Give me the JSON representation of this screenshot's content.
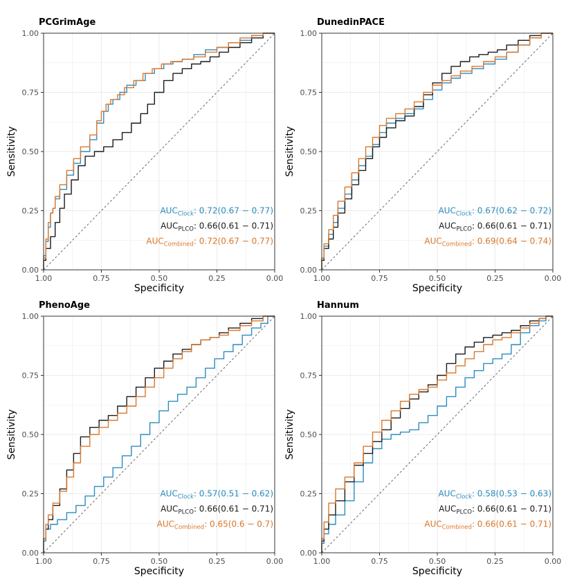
{
  "figure": {
    "axis_labels": {
      "x": "Specificity",
      "y": "Sensitivity"
    },
    "auc_text": {
      "prefix": "AUC",
      "clock_sub": "Clock",
      "plco_sub": "PLCO",
      "combined_sub": "Combined",
      "separator": ":"
    }
  },
  "colors": {
    "clock": "#2b8cbe",
    "plco": "#1a1a1a",
    "combined": "#d9772b",
    "grid": "#ebebeb",
    "frame": "#333333",
    "diagonal": "#666666"
  },
  "chart_data": [
    {
      "type": "line",
      "title": "PCGrimAge",
      "xlabel": "Specificity",
      "ylabel": "Sensitivity",
      "xlim": [
        1.0,
        0.0
      ],
      "ylim": [
        0.0,
        1.0
      ],
      "x_ticks": [
        "1.00",
        "0.75",
        "0.50",
        "0.25",
        "0.00"
      ],
      "y_ticks": [
        "0.00",
        "0.25",
        "0.50",
        "0.75",
        "1.00"
      ],
      "grid": true,
      "diagonal": true,
      "auc": {
        "clock": "0.72(0.67 − 0.77)",
        "plco": "0.66(0.61 − 0.71)",
        "combined": "0.72(0.67 − 0.77)"
      },
      "series": [
        {
          "name": "Clock",
          "x": [
            1.0,
            0.99,
            0.98,
            0.97,
            0.96,
            0.95,
            0.93,
            0.9,
            0.87,
            0.84,
            0.8,
            0.77,
            0.74,
            0.72,
            0.7,
            0.67,
            0.64,
            0.6,
            0.56,
            0.52,
            0.48,
            0.44,
            0.4,
            0.35,
            0.3,
            0.25,
            0.2,
            0.15,
            0.1,
            0.05,
            0.0
          ],
          "y": [
            0.0,
            0.06,
            0.12,
            0.18,
            0.24,
            0.26,
            0.3,
            0.34,
            0.4,
            0.45,
            0.5,
            0.55,
            0.62,
            0.67,
            0.7,
            0.72,
            0.75,
            0.78,
            0.8,
            0.83,
            0.85,
            0.87,
            0.88,
            0.89,
            0.91,
            0.93,
            0.94,
            0.96,
            0.97,
            0.99,
            1.0
          ]
        },
        {
          "name": "PLCO",
          "x": [
            1.0,
            0.99,
            0.97,
            0.95,
            0.93,
            0.91,
            0.88,
            0.85,
            0.82,
            0.78,
            0.74,
            0.7,
            0.66,
            0.62,
            0.58,
            0.55,
            0.52,
            0.48,
            0.44,
            0.4,
            0.36,
            0.32,
            0.28,
            0.24,
            0.2,
            0.15,
            0.1,
            0.05,
            0.0
          ],
          "y": [
            0.0,
            0.04,
            0.09,
            0.14,
            0.2,
            0.26,
            0.32,
            0.38,
            0.44,
            0.48,
            0.5,
            0.52,
            0.55,
            0.58,
            0.62,
            0.66,
            0.7,
            0.75,
            0.8,
            0.83,
            0.85,
            0.87,
            0.88,
            0.9,
            0.92,
            0.94,
            0.96,
            0.98,
            1.0
          ]
        },
        {
          "name": "Combined",
          "x": [
            1.0,
            0.99,
            0.98,
            0.97,
            0.96,
            0.95,
            0.93,
            0.9,
            0.87,
            0.84,
            0.8,
            0.77,
            0.75,
            0.73,
            0.71,
            0.68,
            0.65,
            0.61,
            0.57,
            0.53,
            0.49,
            0.45,
            0.4,
            0.35,
            0.3,
            0.25,
            0.2,
            0.15,
            0.1,
            0.05,
            0.0
          ],
          "y": [
            0.0,
            0.05,
            0.13,
            0.2,
            0.24,
            0.26,
            0.31,
            0.36,
            0.42,
            0.47,
            0.52,
            0.57,
            0.63,
            0.67,
            0.7,
            0.72,
            0.74,
            0.77,
            0.8,
            0.83,
            0.85,
            0.87,
            0.88,
            0.89,
            0.9,
            0.92,
            0.94,
            0.96,
            0.98,
            0.99,
            1.0
          ]
        }
      ]
    },
    {
      "type": "line",
      "title": "DunedinPACE",
      "xlabel": "Specificity",
      "ylabel": "Sensitivity",
      "xlim": [
        1.0,
        0.0
      ],
      "ylim": [
        0.0,
        1.0
      ],
      "x_ticks": [
        "1.00",
        "0.75",
        "0.50",
        "0.25",
        "0.00"
      ],
      "y_ticks": [
        "0.00",
        "0.25",
        "0.50",
        "0.75",
        "1.00"
      ],
      "grid": true,
      "diagonal": true,
      "auc": {
        "clock": "0.67(0.62 − 0.72)",
        "plco": "0.66(0.61 − 0.71)",
        "combined": "0.69(0.64 − 0.74)"
      },
      "series": [
        {
          "name": "Clock",
          "x": [
            1.0,
            0.99,
            0.97,
            0.95,
            0.93,
            0.9,
            0.87,
            0.84,
            0.81,
            0.78,
            0.75,
            0.72,
            0.68,
            0.64,
            0.6,
            0.56,
            0.52,
            0.48,
            0.44,
            0.4,
            0.35,
            0.3,
            0.25,
            0.2,
            0.15,
            0.1,
            0.05,
            0.0
          ],
          "y": [
            0.0,
            0.05,
            0.1,
            0.15,
            0.2,
            0.26,
            0.32,
            0.38,
            0.44,
            0.48,
            0.53,
            0.58,
            0.62,
            0.64,
            0.66,
            0.68,
            0.72,
            0.76,
            0.79,
            0.81,
            0.83,
            0.85,
            0.87,
            0.89,
            0.92,
            0.95,
            0.98,
            1.0
          ]
        },
        {
          "name": "PLCO",
          "x": [
            1.0,
            0.99,
            0.97,
            0.95,
            0.93,
            0.9,
            0.87,
            0.84,
            0.81,
            0.78,
            0.75,
            0.72,
            0.68,
            0.64,
            0.6,
            0.56,
            0.52,
            0.48,
            0.44,
            0.4,
            0.36,
            0.32,
            0.28,
            0.24,
            0.2,
            0.15,
            0.1,
            0.05,
            0.0
          ],
          "y": [
            0.0,
            0.04,
            0.09,
            0.13,
            0.18,
            0.24,
            0.3,
            0.36,
            0.42,
            0.47,
            0.52,
            0.56,
            0.6,
            0.63,
            0.65,
            0.69,
            0.74,
            0.79,
            0.83,
            0.86,
            0.88,
            0.9,
            0.91,
            0.92,
            0.93,
            0.95,
            0.97,
            0.99,
            1.0
          ]
        },
        {
          "name": "Combined",
          "x": [
            1.0,
            0.99,
            0.97,
            0.95,
            0.93,
            0.9,
            0.87,
            0.84,
            0.81,
            0.78,
            0.75,
            0.72,
            0.68,
            0.64,
            0.6,
            0.56,
            0.52,
            0.48,
            0.44,
            0.4,
            0.35,
            0.3,
            0.25,
            0.2,
            0.15,
            0.1,
            0.05,
            0.0
          ],
          "y": [
            0.0,
            0.05,
            0.11,
            0.17,
            0.23,
            0.29,
            0.35,
            0.41,
            0.47,
            0.52,
            0.56,
            0.61,
            0.64,
            0.66,
            0.68,
            0.71,
            0.75,
            0.78,
            0.8,
            0.82,
            0.84,
            0.86,
            0.88,
            0.9,
            0.92,
            0.95,
            0.98,
            1.0
          ]
        }
      ]
    },
    {
      "type": "line",
      "title": "PhenoAge",
      "xlabel": "Specificity",
      "ylabel": "Sensitivity",
      "xlim": [
        1.0,
        0.0
      ],
      "ylim": [
        0.0,
        1.0
      ],
      "x_ticks": [
        "1.00",
        "0.75",
        "0.50",
        "0.25",
        "0.00"
      ],
      "y_ticks": [
        "0.00",
        "0.25",
        "0.50",
        "0.75",
        "1.00"
      ],
      "grid": true,
      "diagonal": true,
      "auc": {
        "clock": "0.57(0.51 − 0.62)",
        "plco": "0.66(0.61 − 0.71)",
        "combined": "0.65(0.6 − 0.7)"
      },
      "series": [
        {
          "name": "Clock",
          "x": [
            1.0,
            0.99,
            0.97,
            0.94,
            0.9,
            0.86,
            0.82,
            0.78,
            0.74,
            0.7,
            0.66,
            0.62,
            0.58,
            0.54,
            0.5,
            0.46,
            0.42,
            0.38,
            0.34,
            0.3,
            0.26,
            0.22,
            0.18,
            0.14,
            0.1,
            0.06,
            0.03,
            0.0
          ],
          "y": [
            0.0,
            0.05,
            0.1,
            0.12,
            0.14,
            0.17,
            0.2,
            0.24,
            0.28,
            0.32,
            0.36,
            0.41,
            0.45,
            0.5,
            0.55,
            0.6,
            0.64,
            0.67,
            0.7,
            0.74,
            0.78,
            0.82,
            0.85,
            0.88,
            0.92,
            0.95,
            0.97,
            1.0
          ]
        },
        {
          "name": "PLCO",
          "x": [
            1.0,
            0.99,
            0.98,
            0.96,
            0.93,
            0.9,
            0.87,
            0.84,
            0.8,
            0.76,
            0.72,
            0.68,
            0.64,
            0.6,
            0.56,
            0.52,
            0.48,
            0.44,
            0.4,
            0.36,
            0.32,
            0.28,
            0.24,
            0.2,
            0.15,
            0.1,
            0.05,
            0.0
          ],
          "y": [
            0.0,
            0.06,
            0.1,
            0.14,
            0.2,
            0.27,
            0.35,
            0.42,
            0.49,
            0.53,
            0.56,
            0.58,
            0.62,
            0.66,
            0.7,
            0.74,
            0.78,
            0.81,
            0.84,
            0.86,
            0.88,
            0.9,
            0.91,
            0.93,
            0.95,
            0.97,
            0.99,
            1.0
          ]
        },
        {
          "name": "Combined",
          "x": [
            1.0,
            0.99,
            0.98,
            0.96,
            0.93,
            0.9,
            0.87,
            0.84,
            0.8,
            0.76,
            0.72,
            0.68,
            0.64,
            0.6,
            0.56,
            0.52,
            0.48,
            0.44,
            0.4,
            0.36,
            0.32,
            0.28,
            0.24,
            0.2,
            0.15,
            0.1,
            0.05,
            0.0
          ],
          "y": [
            0.0,
            0.06,
            0.12,
            0.16,
            0.21,
            0.26,
            0.32,
            0.38,
            0.45,
            0.5,
            0.53,
            0.56,
            0.59,
            0.62,
            0.66,
            0.7,
            0.74,
            0.78,
            0.82,
            0.85,
            0.88,
            0.9,
            0.91,
            0.92,
            0.94,
            0.96,
            0.98,
            1.0
          ]
        }
      ]
    },
    {
      "type": "line",
      "title": "Hannum",
      "xlabel": "Specificity",
      "ylabel": "Sensitivity",
      "xlim": [
        1.0,
        0.0
      ],
      "ylim": [
        0.0,
        1.0
      ],
      "x_ticks": [
        "1.00",
        "0.75",
        "0.50",
        "0.25",
        "0.00"
      ],
      "y_ticks": [
        "0.00",
        "0.25",
        "0.50",
        "0.75",
        "1.00"
      ],
      "grid": true,
      "diagonal": true,
      "auc": {
        "clock": "0.58(0.53 − 0.63)",
        "plco": "0.66(0.61 − 0.71)",
        "combined": "0.66(0.61 − 0.71)"
      },
      "series": [
        {
          "name": "Clock",
          "x": [
            1.0,
            0.99,
            0.97,
            0.94,
            0.9,
            0.86,
            0.82,
            0.78,
            0.74,
            0.7,
            0.66,
            0.62,
            0.58,
            0.54,
            0.5,
            0.46,
            0.42,
            0.38,
            0.34,
            0.3,
            0.26,
            0.22,
            0.18,
            0.14,
            0.1,
            0.06,
            0.03,
            0.0
          ],
          "y": [
            0.0,
            0.04,
            0.08,
            0.12,
            0.16,
            0.22,
            0.3,
            0.38,
            0.44,
            0.48,
            0.5,
            0.51,
            0.52,
            0.55,
            0.58,
            0.62,
            0.66,
            0.7,
            0.74,
            0.77,
            0.8,
            0.82,
            0.84,
            0.88,
            0.93,
            0.96,
            0.98,
            1.0
          ]
        },
        {
          "name": "PLCO",
          "x": [
            1.0,
            0.99,
            0.97,
            0.94,
            0.9,
            0.86,
            0.82,
            0.78,
            0.74,
            0.7,
            0.66,
            0.62,
            0.58,
            0.54,
            0.5,
            0.46,
            0.42,
            0.38,
            0.34,
            0.3,
            0.26,
            0.22,
            0.18,
            0.14,
            0.1,
            0.06,
            0.03,
            0.0
          ],
          "y": [
            0.0,
            0.05,
            0.1,
            0.16,
            0.22,
            0.3,
            0.37,
            0.42,
            0.47,
            0.52,
            0.57,
            0.61,
            0.65,
            0.68,
            0.71,
            0.75,
            0.8,
            0.84,
            0.87,
            0.89,
            0.91,
            0.92,
            0.93,
            0.94,
            0.96,
            0.98,
            0.99,
            1.0
          ]
        },
        {
          "name": "Combined",
          "x": [
            1.0,
            0.99,
            0.97,
            0.94,
            0.9,
            0.86,
            0.82,
            0.78,
            0.74,
            0.7,
            0.66,
            0.62,
            0.58,
            0.54,
            0.5,
            0.46,
            0.42,
            0.38,
            0.34,
            0.3,
            0.26,
            0.22,
            0.18,
            0.14,
            0.1,
            0.06,
            0.03,
            0.0
          ],
          "y": [
            0.0,
            0.06,
            0.13,
            0.21,
            0.27,
            0.32,
            0.38,
            0.45,
            0.51,
            0.56,
            0.6,
            0.64,
            0.67,
            0.69,
            0.7,
            0.73,
            0.76,
            0.79,
            0.82,
            0.85,
            0.88,
            0.9,
            0.91,
            0.93,
            0.95,
            0.97,
            0.99,
            1.0
          ]
        }
      ]
    }
  ]
}
